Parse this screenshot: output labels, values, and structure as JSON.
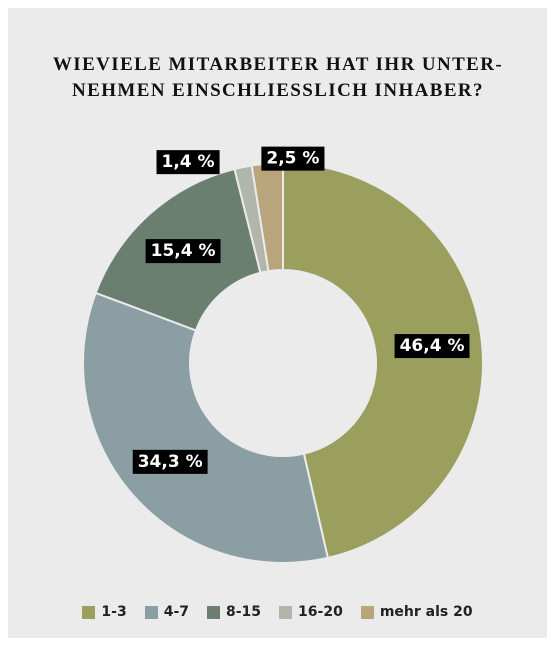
{
  "chart_data": {
    "type": "donut",
    "title": [
      "WIEVIELE MITARBEITER HAT IHR UNTER-",
      "NEHMEN EINSCHLIESSLICH INHABER?"
    ],
    "categories": [
      "1-3",
      "4-7",
      "8-15",
      "16-20",
      "mehr als 20"
    ],
    "values": [
      46.4,
      34.3,
      15.4,
      1.4,
      2.5
    ],
    "value_labels": [
      "46,4 %",
      "34,3 %",
      "15,4 %",
      "1,4 %",
      "2,5 %"
    ],
    "colors": [
      "#9b9f5d",
      "#8a9ea4",
      "#6a7f6f",
      "#b1b6aa",
      "#b9a47c"
    ],
    "legend": "bottom"
  }
}
